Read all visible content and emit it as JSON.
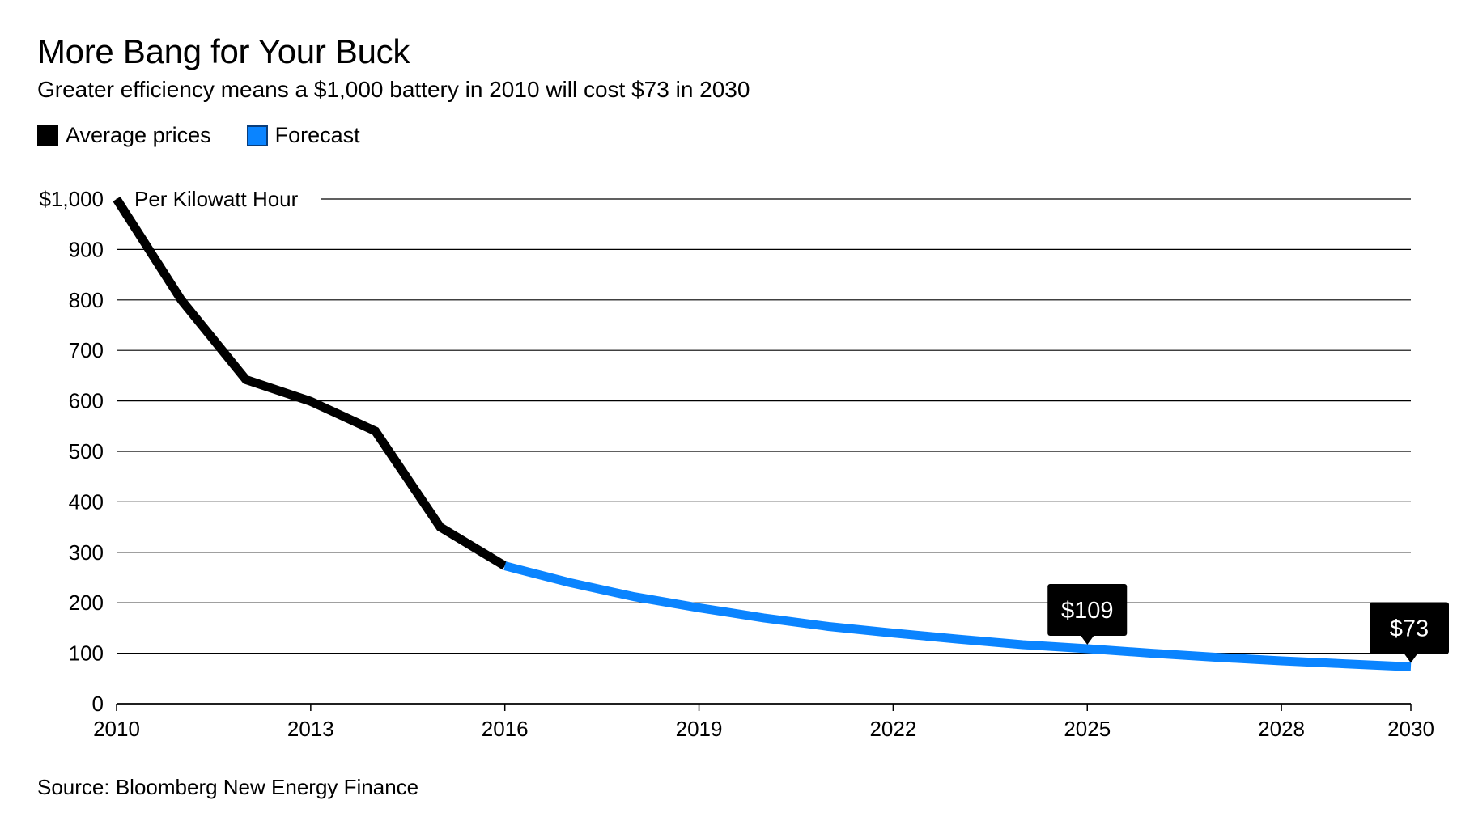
{
  "header": {
    "title": "More Bang for Your Buck",
    "subtitle": "Greater efficiency means a $1,000 battery in 2010 will cost $73 in 2030"
  },
  "legend": [
    {
      "label": "Average prices",
      "color": "#000000"
    },
    {
      "label": "Forecast",
      "color": "#0a84ff"
    }
  ],
  "footer": {
    "source": "Source: Bloomberg New Energy Finance"
  },
  "chart_data": {
    "type": "line",
    "unit_label": "Per Kilowatt Hour",
    "xlim": [
      2010,
      2030
    ],
    "ylim": [
      0,
      1000
    ],
    "x_ticks": [
      2010,
      2013,
      2016,
      2019,
      2022,
      2025,
      2028,
      2030
    ],
    "y_ticks": [
      0,
      100,
      200,
      300,
      400,
      500,
      600,
      700,
      800,
      900,
      1000
    ],
    "y_tick_labels": [
      "0",
      "100",
      "200",
      "300",
      "400",
      "500",
      "600",
      "700",
      "800",
      "900",
      "$1,000"
    ],
    "grid": true,
    "series": [
      {
        "name": "Average prices",
        "color": "#000000",
        "points": [
          [
            2010,
            1000
          ],
          [
            2011,
            800
          ],
          [
            2012,
            642
          ],
          [
            2013,
            599
          ],
          [
            2014,
            540
          ],
          [
            2015,
            350
          ],
          [
            2016,
            273
          ]
        ]
      },
      {
        "name": "Forecast",
        "color": "#0a84ff",
        "points": [
          [
            2016,
            273
          ],
          [
            2017,
            240
          ],
          [
            2018,
            212
          ],
          [
            2019,
            190
          ],
          [
            2020,
            170
          ],
          [
            2021,
            153
          ],
          [
            2022,
            140
          ],
          [
            2023,
            128
          ],
          [
            2024,
            117
          ],
          [
            2025,
            109
          ],
          [
            2026,
            100
          ],
          [
            2027,
            92
          ],
          [
            2028,
            85
          ],
          [
            2029,
            79
          ],
          [
            2030,
            73
          ]
        ]
      }
    ],
    "annotations": [
      {
        "x": 2025,
        "y": 109,
        "label": "$109"
      },
      {
        "x": 2030,
        "y": 73,
        "label": "$73"
      }
    ]
  }
}
